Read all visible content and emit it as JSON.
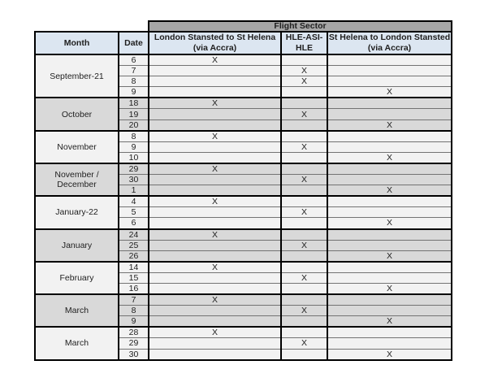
{
  "table": {
    "flight_sector_label": "Flight Sector",
    "columns": {
      "month": "Month",
      "date": "Date",
      "sector1_line1": "London Stansted to St Helena",
      "sector1_line2": "(via Accra)",
      "sector2": "HLE-ASI-HLE",
      "sector3_line1": "St Helena to London Stansted",
      "sector3_line2": "(via Accra)"
    },
    "mark": "X",
    "groups": [
      {
        "month": "September-21",
        "shade": "light",
        "rows": [
          {
            "date": "6",
            "sector": 1
          },
          {
            "date": "7",
            "sector": 2
          },
          {
            "date": "8",
            "sector": 2
          },
          {
            "date": "9",
            "sector": 3
          }
        ]
      },
      {
        "month": "October",
        "shade": "dark",
        "rows": [
          {
            "date": "18",
            "sector": 1
          },
          {
            "date": "19",
            "sector": 2
          },
          {
            "date": "20",
            "sector": 3
          }
        ]
      },
      {
        "month": "November",
        "shade": "light",
        "rows": [
          {
            "date": "8",
            "sector": 1
          },
          {
            "date": "9",
            "sector": 2
          },
          {
            "date": "10",
            "sector": 3
          }
        ]
      },
      {
        "month": "November / December",
        "shade": "dark",
        "rows": [
          {
            "date": "29",
            "sector": 1
          },
          {
            "date": "30",
            "sector": 2
          },
          {
            "date": "1",
            "sector": 3
          }
        ]
      },
      {
        "month": "January-22",
        "shade": "light",
        "rows": [
          {
            "date": "4",
            "sector": 1
          },
          {
            "date": "5",
            "sector": 2
          },
          {
            "date": "6",
            "sector": 3
          }
        ]
      },
      {
        "month": "January",
        "shade": "dark",
        "rows": [
          {
            "date": "24",
            "sector": 1
          },
          {
            "date": "25",
            "sector": 2
          },
          {
            "date": "26",
            "sector": 3
          }
        ]
      },
      {
        "month": "February",
        "shade": "light",
        "rows": [
          {
            "date": "14",
            "sector": 1
          },
          {
            "date": "15",
            "sector": 2
          },
          {
            "date": "16",
            "sector": 3
          }
        ]
      },
      {
        "month": "March",
        "shade": "dark",
        "rows": [
          {
            "date": "7",
            "sector": 1
          },
          {
            "date": "8",
            "sector": 2
          },
          {
            "date": "9",
            "sector": 3
          }
        ]
      },
      {
        "month": "March",
        "shade": "light",
        "rows": [
          {
            "date": "28",
            "sector": 1
          },
          {
            "date": "29",
            "sector": 2
          },
          {
            "date": "30",
            "sector": 3
          }
        ]
      }
    ],
    "colors": {
      "flight_sector_bg": "#a6a6a6",
      "header_bg": "#dce6f1",
      "block_light_bg": "#f2f2f2",
      "block_dark_bg": "#d9d9d9",
      "border_strong": "#000000",
      "row_divider": "#737373",
      "text_color": "#1f1f1f"
    }
  }
}
